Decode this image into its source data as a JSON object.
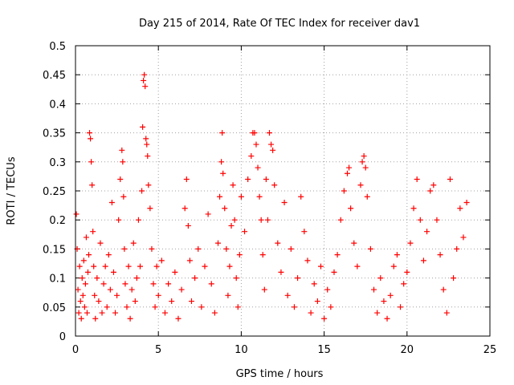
{
  "chart_data": {
    "type": "scatter",
    "title": "Day 215 of 2014, Rate Of TEC Index for receiver dav1",
    "xlabel": "GPS time / hours",
    "ylabel": "ROTI / TECUs",
    "xlim": [
      0,
      25
    ],
    "ylim": [
      0,
      0.5
    ],
    "xticks": [
      0,
      5,
      10,
      15,
      20,
      25
    ],
    "xtick_labels": [
      "0",
      "5",
      "10",
      "15",
      "20",
      "25"
    ],
    "yticks": [
      0,
      0.05,
      0.1,
      0.15,
      0.2,
      0.25,
      0.3,
      0.35,
      0.4,
      0.45,
      0.5
    ],
    "ytick_labels": [
      "0",
      "0.05",
      "0.1",
      "0.15",
      "0.2",
      "0.25",
      "0.3",
      "0.35",
      "0.4",
      "0.45",
      "0.5"
    ],
    "grid": true,
    "marker": "+",
    "color": "#ff0000",
    "series": [
      {
        "points": [
          [
            0.05,
            0.21
          ],
          [
            0.1,
            0.15
          ],
          [
            0.15,
            0.08
          ],
          [
            0.2,
            0.04
          ],
          [
            0.25,
            0.12
          ],
          [
            0.3,
            0.06
          ],
          [
            0.35,
            0.03
          ],
          [
            0.4,
            0.1
          ],
          [
            0.45,
            0.07
          ],
          [
            0.5,
            0.13
          ],
          [
            0.55,
            0.05
          ],
          [
            0.6,
            0.09
          ],
          [
            0.65,
            0.17
          ],
          [
            0.7,
            0.04
          ],
          [
            0.75,
            0.11
          ],
          [
            0.8,
            0.14
          ],
          [
            0.85,
            0.35
          ],
          [
            0.9,
            0.34
          ],
          [
            0.95,
            0.3
          ],
          [
            1.0,
            0.26
          ],
          [
            1.05,
            0.18
          ],
          [
            1.1,
            0.12
          ],
          [
            1.15,
            0.07
          ],
          [
            1.2,
            0.03
          ],
          [
            1.3,
            0.1
          ],
          [
            1.4,
            0.06
          ],
          [
            1.5,
            0.16
          ],
          [
            1.6,
            0.04
          ],
          [
            1.7,
            0.09
          ],
          [
            1.8,
            0.12
          ],
          [
            1.9,
            0.05
          ],
          [
            2.0,
            0.14
          ],
          [
            2.1,
            0.08
          ],
          [
            2.2,
            0.23
          ],
          [
            2.3,
            0.11
          ],
          [
            2.4,
            0.04
          ],
          [
            2.5,
            0.07
          ],
          [
            2.6,
            0.2
          ],
          [
            2.7,
            0.27
          ],
          [
            2.8,
            0.32
          ],
          [
            2.85,
            0.3
          ],
          [
            2.9,
            0.24
          ],
          [
            2.95,
            0.15
          ],
          [
            3.0,
            0.09
          ],
          [
            3.1,
            0.05
          ],
          [
            3.2,
            0.12
          ],
          [
            3.3,
            0.03
          ],
          [
            3.4,
            0.08
          ],
          [
            3.5,
            0.16
          ],
          [
            3.6,
            0.06
          ],
          [
            3.7,
            0.1
          ],
          [
            3.8,
            0.2
          ],
          [
            3.9,
            0.12
          ],
          [
            4.0,
            0.25
          ],
          [
            4.05,
            0.36
          ],
          [
            4.1,
            0.44
          ],
          [
            4.15,
            0.45
          ],
          [
            4.2,
            0.43
          ],
          [
            4.25,
            0.34
          ],
          [
            4.3,
            0.33
          ],
          [
            4.35,
            0.31
          ],
          [
            4.4,
            0.26
          ],
          [
            4.5,
            0.22
          ],
          [
            4.6,
            0.15
          ],
          [
            4.7,
            0.09
          ],
          [
            4.8,
            0.05
          ],
          [
            4.9,
            0.12
          ],
          [
            5.0,
            0.07
          ],
          [
            5.2,
            0.13
          ],
          [
            5.4,
            0.04
          ],
          [
            5.6,
            0.09
          ],
          [
            5.8,
            0.06
          ],
          [
            6.0,
            0.11
          ],
          [
            6.2,
            0.03
          ],
          [
            6.4,
            0.08
          ],
          [
            6.6,
            0.22
          ],
          [
            6.7,
            0.27
          ],
          [
            6.8,
            0.19
          ],
          [
            6.9,
            0.13
          ],
          [
            7.0,
            0.06
          ],
          [
            7.2,
            0.1
          ],
          [
            7.4,
            0.15
          ],
          [
            7.6,
            0.05
          ],
          [
            7.8,
            0.12
          ],
          [
            8.0,
            0.21
          ],
          [
            8.2,
            0.09
          ],
          [
            8.4,
            0.04
          ],
          [
            8.6,
            0.16
          ],
          [
            8.7,
            0.24
          ],
          [
            8.8,
            0.3
          ],
          [
            8.85,
            0.35
          ],
          [
            8.9,
            0.28
          ],
          [
            9.0,
            0.22
          ],
          [
            9.1,
            0.15
          ],
          [
            9.2,
            0.07
          ],
          [
            9.3,
            0.12
          ],
          [
            9.4,
            0.19
          ],
          [
            9.5,
            0.26
          ],
          [
            9.6,
            0.2
          ],
          [
            9.7,
            0.1
          ],
          [
            9.8,
            0.05
          ],
          [
            9.9,
            0.14
          ],
          [
            10.0,
            0.24
          ],
          [
            10.2,
            0.18
          ],
          [
            10.4,
            0.27
          ],
          [
            10.6,
            0.31
          ],
          [
            10.7,
            0.35
          ],
          [
            10.8,
            0.35
          ],
          [
            10.9,
            0.33
          ],
          [
            11.0,
            0.29
          ],
          [
            11.1,
            0.24
          ],
          [
            11.2,
            0.2
          ],
          [
            11.3,
            0.14
          ],
          [
            11.4,
            0.08
          ],
          [
            11.5,
            0.27
          ],
          [
            11.6,
            0.2
          ],
          [
            11.7,
            0.35
          ],
          [
            11.8,
            0.33
          ],
          [
            11.9,
            0.32
          ],
          [
            12.0,
            0.26
          ],
          [
            12.2,
            0.16
          ],
          [
            12.4,
            0.11
          ],
          [
            12.6,
            0.23
          ],
          [
            12.8,
            0.07
          ],
          [
            13.0,
            0.15
          ],
          [
            13.2,
            0.05
          ],
          [
            13.4,
            0.1
          ],
          [
            13.6,
            0.24
          ],
          [
            13.8,
            0.18
          ],
          [
            14.0,
            0.13
          ],
          [
            14.2,
            0.04
          ],
          [
            14.4,
            0.09
          ],
          [
            14.6,
            0.06
          ],
          [
            14.8,
            0.12
          ],
          [
            15.0,
            0.03
          ],
          [
            15.2,
            0.08
          ],
          [
            15.4,
            0.05
          ],
          [
            15.6,
            0.11
          ],
          [
            15.8,
            0.14
          ],
          [
            16.0,
            0.2
          ],
          [
            16.2,
            0.25
          ],
          [
            16.4,
            0.28
          ],
          [
            16.5,
            0.29
          ],
          [
            16.6,
            0.22
          ],
          [
            16.8,
            0.16
          ],
          [
            17.0,
            0.12
          ],
          [
            17.2,
            0.26
          ],
          [
            17.3,
            0.3
          ],
          [
            17.4,
            0.31
          ],
          [
            17.5,
            0.29
          ],
          [
            17.6,
            0.24
          ],
          [
            17.8,
            0.15
          ],
          [
            18.0,
            0.08
          ],
          [
            18.2,
            0.04
          ],
          [
            18.4,
            0.1
          ],
          [
            18.6,
            0.06
          ],
          [
            18.8,
            0.03
          ],
          [
            19.0,
            0.07
          ],
          [
            19.2,
            0.12
          ],
          [
            19.4,
            0.14
          ],
          [
            19.6,
            0.05
          ],
          [
            19.8,
            0.09
          ],
          [
            20.0,
            0.11
          ],
          [
            20.2,
            0.16
          ],
          [
            20.4,
            0.22
          ],
          [
            20.6,
            0.27
          ],
          [
            20.8,
            0.2
          ],
          [
            21.0,
            0.13
          ],
          [
            21.2,
            0.18
          ],
          [
            21.4,
            0.25
          ],
          [
            21.6,
            0.26
          ],
          [
            21.8,
            0.2
          ],
          [
            22.0,
            0.14
          ],
          [
            22.2,
            0.08
          ],
          [
            22.4,
            0.04
          ],
          [
            22.6,
            0.27
          ],
          [
            22.8,
            0.1
          ],
          [
            23.0,
            0.15
          ],
          [
            23.2,
            0.22
          ],
          [
            23.4,
            0.17
          ],
          [
            23.6,
            0.23
          ]
        ]
      }
    ]
  }
}
